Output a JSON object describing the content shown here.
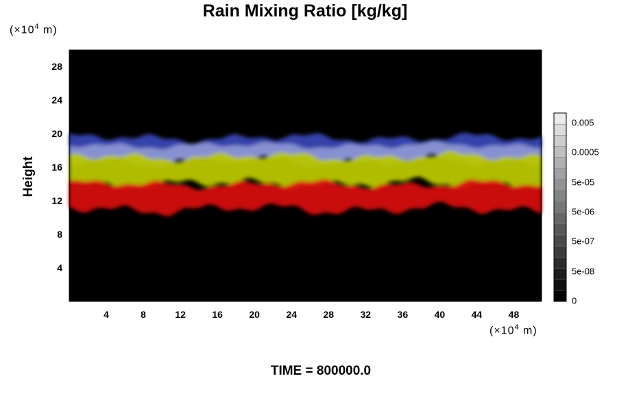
{
  "title": "Rain Mixing Ratio [kg/kg]",
  "y_unit": {
    "prefix": "(×10",
    "exp": "4",
    "suffix": " m)"
  },
  "x_unit": {
    "prefix": "(×10",
    "exp": "4",
    "suffix": " m)"
  },
  "footer": "TIME = 800000.0",
  "chart_data": {
    "type": "heatmap",
    "title": "Rain Mixing Ratio [kg/kg]",
    "ylabel": "Height",
    "xlabel": "",
    "x_unit_label": "(×10^4 m)",
    "y_unit_label": "(×10^4 m)",
    "xlim": [
      0,
      51
    ],
    "ylim": [
      0,
      30
    ],
    "x_ticks": [
      4,
      8,
      12,
      16,
      20,
      24,
      28,
      32,
      36,
      40,
      44,
      48
    ],
    "y_ticks": [
      4,
      8,
      12,
      16,
      20,
      24,
      28
    ],
    "colorbar": {
      "scale": "log",
      "labels": [
        "0.005",
        "0.0005",
        "5e-05",
        "5e-06",
        "5e-07",
        "5e-08",
        "0"
      ],
      "levels": 17
    },
    "background_color": "#000000",
    "bands": [
      {
        "name": "upper",
        "color": "#8e99dc",
        "y_bottom": 16.7,
        "y_top": 19.5
      },
      {
        "name": "middle",
        "color": "#b8c600",
        "y_bottom": 14.0,
        "y_top": 17.3
      },
      {
        "name": "lower",
        "color": "#d41010",
        "y_bottom": 11.0,
        "y_top": 14.0
      }
    ],
    "notes": "Rain layer between ~11 and ~20 (×10^4 m); black elsewhere"
  }
}
